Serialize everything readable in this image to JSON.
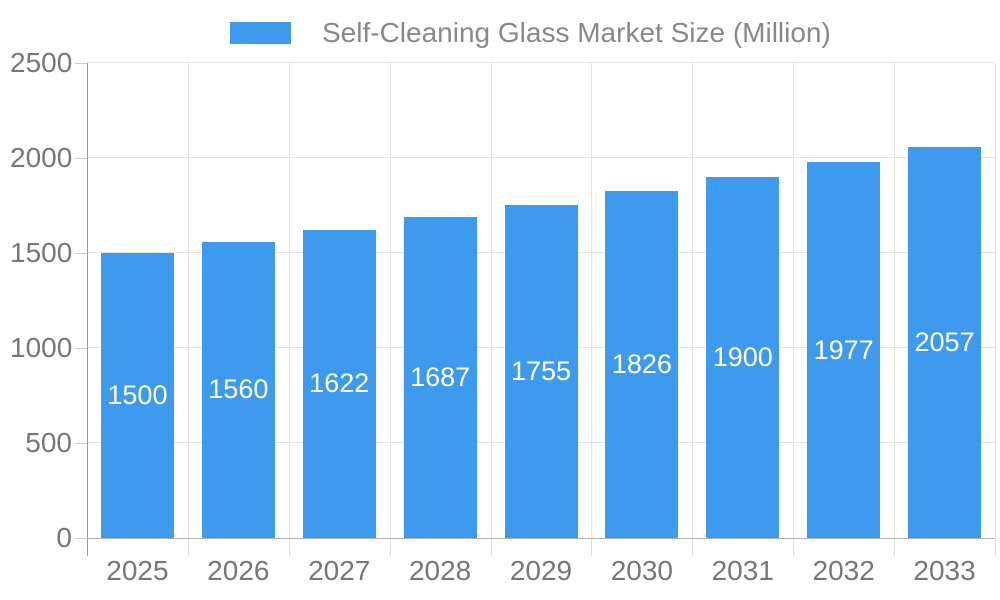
{
  "chart_data": {
    "type": "bar",
    "title": "Self-Cleaning Glass Market Size (Million)",
    "categories": [
      "2025",
      "2026",
      "2027",
      "2028",
      "2029",
      "2030",
      "2031",
      "2032",
      "2033"
    ],
    "values": [
      1500,
      1560,
      1622,
      1687,
      1755,
      1826,
      1900,
      1977,
      2057
    ],
    "xlabel": "",
    "ylabel": "",
    "ylim": [
      0,
      2500
    ],
    "y_ticks": [
      0,
      500,
      1000,
      1500,
      2000,
      2500
    ],
    "grid": true,
    "legend_position": "top-center",
    "bar_labels_inside": true
  },
  "colors": {
    "bar": "#3D9AEF",
    "bar_value_text": "#ffffff",
    "axis_label": "#777777",
    "legend_text": "#888888",
    "gridline": "#e3e3e3",
    "y_axis_line": "#999999",
    "x_axis_line": "#b0b0b0"
  }
}
